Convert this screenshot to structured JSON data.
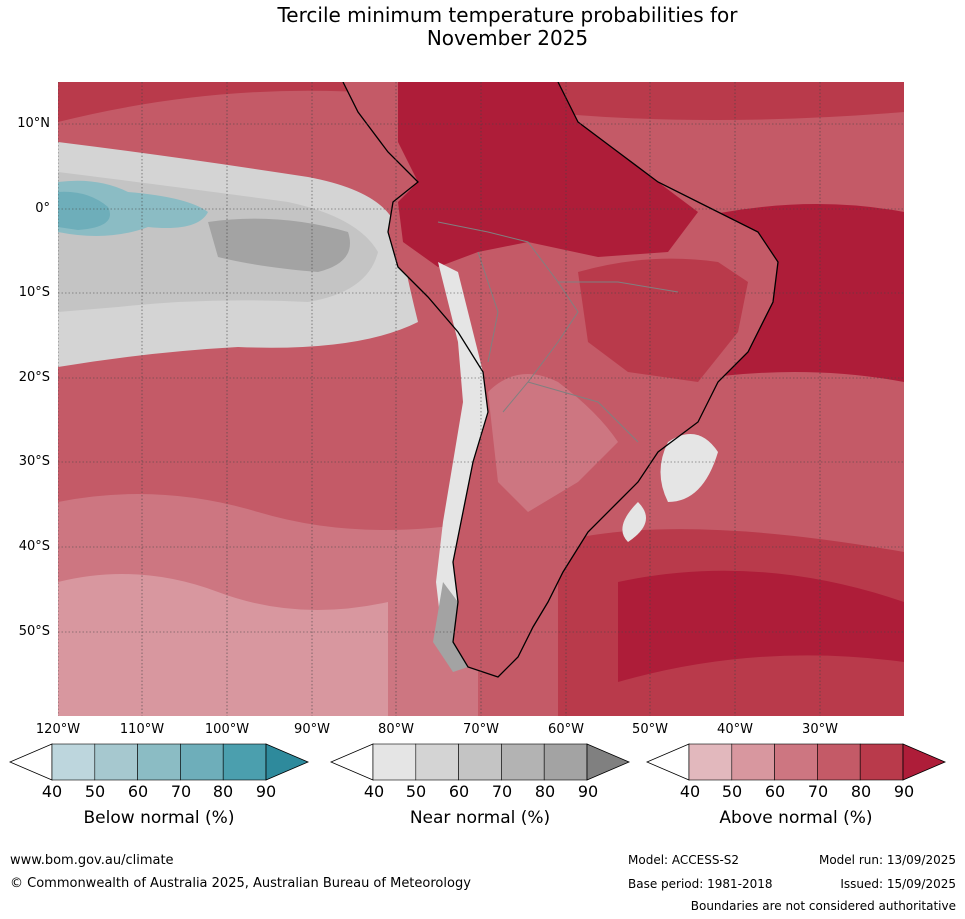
{
  "title_line1": "Tercile minimum temperature probabilities for",
  "title_line2": "November 2025",
  "latitudes": [
    "10°N",
    "0°",
    "10°S",
    "20°S",
    "30°S",
    "40°S",
    "50°S"
  ],
  "longitudes": [
    "120°W",
    "110°W",
    "100°W",
    "90°W",
    "80°W",
    "70°W",
    "60°W",
    "50°W",
    "40°W",
    "30°W"
  ],
  "colorbars": [
    {
      "label": "Below normal (%)",
      "ticks": [
        "40",
        "50",
        "60",
        "70",
        "80",
        "90"
      ],
      "colors": [
        "#bdd6dd",
        "#a6c8cf",
        "#8bbcc4",
        "#6eaeba",
        "#4b9fae"
      ],
      "extend_color": "#2e8a9c"
    },
    {
      "label": "Near normal (%)",
      "ticks": [
        "40",
        "50",
        "60",
        "70",
        "80",
        "90"
      ],
      "colors": [
        "#e5e5e5",
        "#d4d4d4",
        "#c4c4c4",
        "#b3b3b3",
        "#a3a3a3"
      ],
      "extend_color": "#808080"
    },
    {
      "label": "Above normal (%)",
      "ticks": [
        "40",
        "50",
        "60",
        "70",
        "80",
        "90"
      ],
      "colors": [
        "#e2b8bd",
        "#d8979f",
        "#cd7681",
        "#c45a67",
        "#b93a4b"
      ],
      "extend_color": "#ae1d39"
    }
  ],
  "footer": {
    "url": "www.bom.gov.au/climate",
    "copyright": "© Commonwealth of Australia 2025, Australian Bureau of Meteorology",
    "model": "Model: ACCESS-S2",
    "base_period": "Base period: 1981-2018",
    "model_run": "Model run: 13/09/2025",
    "issued": "Issued: 15/09/2025",
    "disclaimer": "Boundaries are not considered authoritative"
  }
}
